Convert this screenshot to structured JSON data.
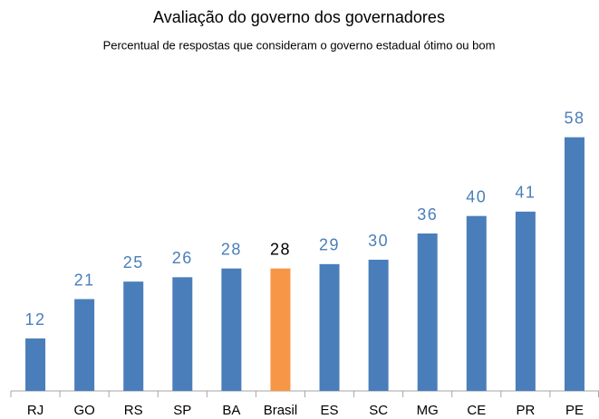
{
  "chart_data": {
    "type": "bar",
    "title": "Avaliação do governo dos governadores",
    "subtitle": "Percentual de respostas que consideram o governo estadual ótimo ou bom",
    "categories": [
      "RJ",
      "GO",
      "RS",
      "SP",
      "BA",
      "Brasil",
      "ES",
      "SC",
      "MG",
      "CE",
      "PR",
      "PE"
    ],
    "values": [
      12,
      21,
      25,
      26,
      28,
      28,
      29,
      30,
      36,
      40,
      41,
      58
    ],
    "colors": [
      "#4a7ebb",
      "#4a7ebb",
      "#4a7ebb",
      "#4a7ebb",
      "#4a7ebb",
      "#f79646",
      "#4a7ebb",
      "#4a7ebb",
      "#4a7ebb",
      "#4a7ebb",
      "#4a7ebb",
      "#4a7ebb"
    ],
    "label_colors": [
      "#4a7ebb",
      "#4a7ebb",
      "#4a7ebb",
      "#4a7ebb",
      "#4a7ebb",
      "#000000",
      "#4a7ebb",
      "#4a7ebb",
      "#4a7ebb",
      "#4a7ebb",
      "#4a7ebb",
      "#4a7ebb"
    ],
    "ylim": [
      0,
      60
    ]
  }
}
